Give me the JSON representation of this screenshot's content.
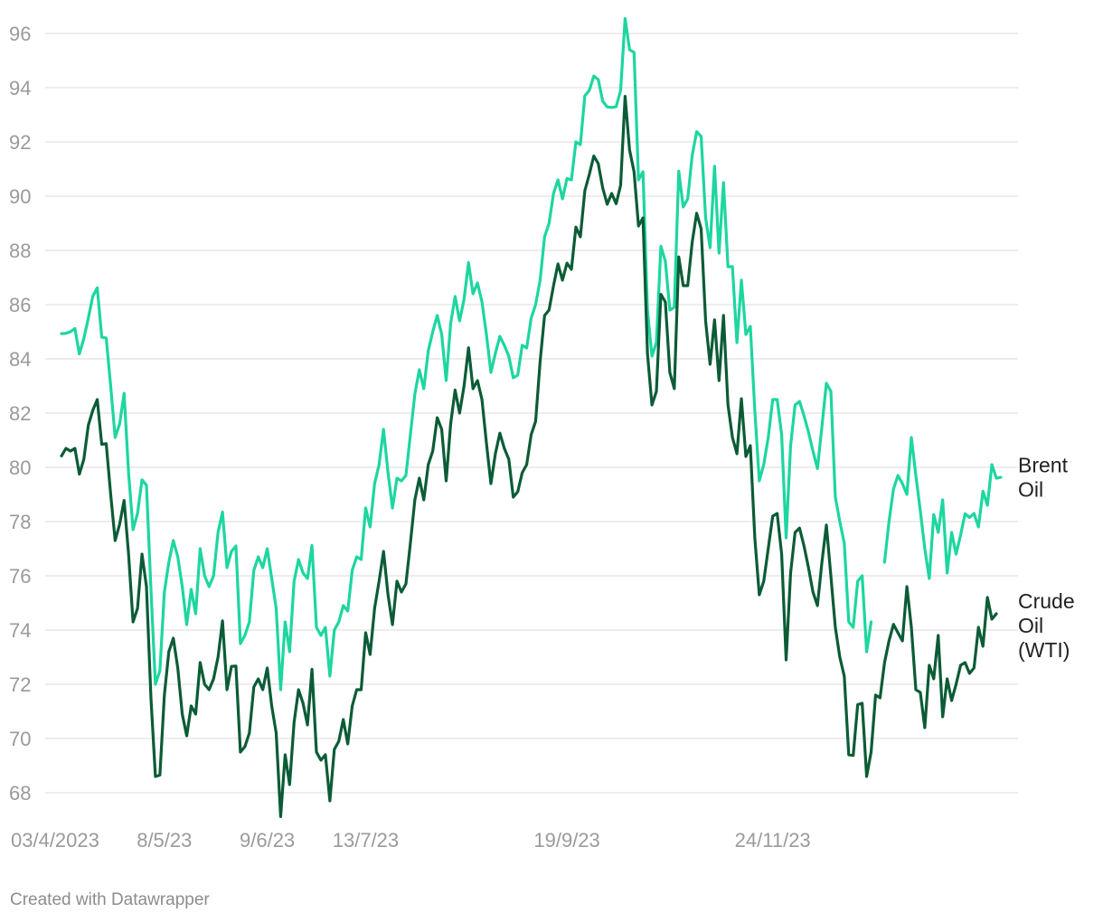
{
  "credit": "Created with Datawrapper",
  "chart_data": {
    "type": "line",
    "title": "",
    "xlabel": "",
    "ylabel": "",
    "ylim": [
      67.5,
      96.5
    ],
    "y_ticks": [
      68,
      70,
      72,
      74,
      76,
      78,
      80,
      82,
      84,
      86,
      88,
      90,
      92,
      94,
      96
    ],
    "x_ticks": [
      {
        "label": "03/4/2023",
        "index": 0
      },
      {
        "label": "8/5/23",
        "index": 23
      },
      {
        "label": "9/6/23",
        "index": 46
      },
      {
        "label": "13/7/23",
        "index": 68
      },
      {
        "label": "19/9/23",
        "index": 113
      },
      {
        "label": "24/11/23",
        "index": 159
      }
    ],
    "grid": true,
    "series": [
      {
        "name": "Brent Oil",
        "label_lines": [
          "Brent",
          "Oil"
        ],
        "color": "#1dd6a0",
        "values": [
          84.93,
          84.94,
          85.0,
          85.12,
          84.18,
          84.75,
          85.5,
          86.31,
          86.62,
          84.8,
          84.77,
          83.0,
          81.1,
          81.6,
          82.73,
          79.8,
          77.7,
          78.3,
          79.54,
          79.34,
          75.5,
          72.0,
          72.5,
          75.4,
          76.5,
          77.3,
          76.7,
          75.6,
          74.2,
          75.5,
          74.6,
          77.0,
          76.0,
          75.6,
          76.0,
          77.6,
          78.35,
          76.3,
          76.9,
          77.1,
          73.5,
          73.8,
          74.3,
          76.2,
          76.7,
          76.3,
          77.0,
          75.9,
          74.8,
          71.8,
          74.3,
          73.2,
          75.8,
          76.6,
          76.1,
          75.9,
          77.12,
          74.1,
          73.8,
          74.1,
          72.3,
          74.0,
          74.3,
          74.9,
          74.7,
          76.2,
          76.7,
          76.6,
          78.5,
          77.8,
          79.4,
          80.1,
          81.4,
          79.8,
          78.5,
          79.6,
          79.5,
          79.7,
          81.2,
          82.7,
          83.6,
          82.9,
          84.3,
          85.0,
          85.6,
          84.9,
          83.2,
          85.3,
          86.3,
          85.4,
          86.2,
          87.55,
          86.4,
          86.8,
          86.1,
          84.9,
          83.5,
          84.2,
          84.83,
          84.5,
          84.1,
          83.3,
          83.4,
          84.5,
          84.4,
          85.5,
          86.0,
          86.9,
          88.5,
          89.0,
          90.1,
          90.6,
          89.9,
          90.65,
          90.6,
          92.0,
          91.9,
          93.7,
          93.9,
          94.43,
          94.3,
          93.5,
          93.29,
          93.27,
          93.3,
          93.9,
          96.55,
          95.4,
          95.3,
          90.6,
          90.9,
          85.8,
          84.1,
          84.6,
          88.15,
          87.6,
          85.8,
          85.9,
          90.92,
          89.6,
          89.9,
          91.5,
          92.38,
          92.2,
          89.2,
          88.1,
          91.1,
          87.9,
          90.5,
          87.4,
          87.4,
          84.6,
          86.9,
          84.9,
          85.2,
          82.1,
          79.5,
          80.1,
          81.1,
          82.5,
          82.5,
          81.2,
          77.4,
          80.8,
          82.3,
          82.43,
          81.9,
          81.3,
          80.6,
          79.95,
          81.5,
          83.1,
          82.8,
          78.9,
          78.0,
          77.2,
          74.3,
          74.1,
          75.8,
          76.0,
          73.2,
          74.3,
          null,
          null,
          76.5,
          78.0,
          79.2,
          79.7,
          79.4,
          79.0,
          81.1,
          79.7,
          78.4,
          77.0,
          75.9,
          78.26,
          77.6,
          78.8,
          76.1,
          77.6,
          76.8,
          77.5,
          78.29,
          78.15,
          78.3,
          77.8,
          79.12,
          78.6,
          80.1,
          79.6,
          79.63
        ]
      },
      {
        "name": "Crude Oil (WTI)",
        "label_lines": [
          "Crude",
          "Oil",
          "(WTI)"
        ],
        "color": "#0b5c36",
        "values": [
          80.42,
          80.7,
          80.6,
          80.7,
          79.75,
          80.3,
          81.55,
          82.1,
          82.5,
          80.85,
          80.87,
          79.0,
          77.3,
          77.9,
          78.78,
          76.8,
          74.3,
          74.8,
          76.8,
          75.6,
          71.5,
          68.6,
          68.65,
          71.6,
          73.2,
          73.7,
          72.6,
          70.9,
          70.1,
          71.2,
          70.9,
          72.8,
          72.0,
          71.8,
          72.2,
          73.0,
          74.34,
          71.8,
          72.66,
          72.67,
          69.5,
          69.7,
          70.2,
          71.9,
          72.2,
          71.8,
          72.6,
          71.2,
          70.2,
          67.12,
          69.4,
          68.3,
          70.6,
          71.8,
          71.3,
          70.5,
          72.55,
          69.5,
          69.2,
          69.4,
          67.7,
          69.6,
          69.9,
          70.7,
          69.8,
          71.2,
          71.8,
          71.8,
          73.9,
          73.1,
          74.8,
          75.8,
          76.9,
          75.3,
          74.2,
          75.8,
          75.4,
          75.7,
          77.2,
          78.8,
          79.6,
          78.8,
          80.1,
          80.6,
          81.83,
          81.4,
          79.5,
          81.6,
          82.85,
          82.0,
          83.0,
          84.41,
          82.9,
          83.2,
          82.5,
          80.9,
          79.4,
          80.5,
          81.26,
          80.7,
          80.3,
          78.9,
          79.1,
          79.8,
          80.1,
          81.2,
          81.7,
          83.9,
          85.6,
          85.8,
          86.7,
          87.5,
          86.9,
          87.53,
          87.3,
          88.86,
          88.5,
          90.2,
          90.8,
          91.48,
          91.2,
          90.3,
          89.7,
          90.1,
          89.72,
          90.4,
          93.68,
          91.7,
          90.9,
          88.9,
          89.2,
          84.2,
          82.3,
          82.8,
          86.38,
          86.1,
          83.5,
          82.9,
          87.76,
          86.7,
          86.7,
          88.3,
          89.37,
          88.8,
          85.4,
          83.8,
          85.44,
          83.2,
          85.6,
          82.3,
          81.1,
          80.5,
          82.53,
          80.4,
          80.8,
          77.4,
          75.3,
          75.8,
          77.0,
          78.2,
          78.3,
          76.8,
          72.9,
          76.1,
          77.6,
          77.76,
          77.1,
          76.3,
          75.4,
          74.9,
          76.5,
          77.87,
          76.0,
          74.1,
          73.0,
          72.3,
          69.4,
          69.38,
          71.25,
          71.3,
          68.6,
          69.5,
          71.6,
          71.5,
          72.8,
          73.6,
          74.21,
          73.9,
          73.6,
          75.6,
          74.1,
          71.8,
          71.7,
          70.4,
          72.7,
          72.2,
          73.8,
          70.8,
          72.2,
          71.4,
          72.0,
          72.7,
          72.8,
          72.4,
          72.6,
          74.1,
          73.4,
          75.2,
          74.4,
          74.6
        ]
      }
    ]
  }
}
